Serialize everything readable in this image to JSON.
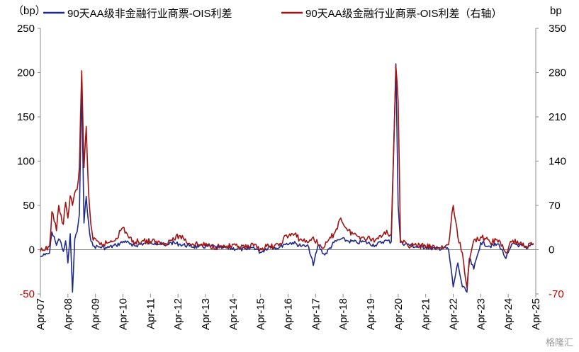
{
  "chart_data": {
    "type": "line",
    "left_unit": "（bp）",
    "right_unit": "bp",
    "y_left": {
      "min": -50,
      "max": 250,
      "ticks": [
        -50,
        0,
        50,
        100,
        150,
        200,
        250
      ]
    },
    "y_right": {
      "min": -70,
      "max": 350,
      "ticks": [
        -70,
        0,
        70,
        140,
        210,
        280,
        350
      ]
    },
    "x_ticks": [
      "Apr-07",
      "Apr-08",
      "Apr-09",
      "Apr-10",
      "Apr-11",
      "Apr-12",
      "Apr-13",
      "Apr-14",
      "Apr-15",
      "Apr-16",
      "Apr-17",
      "Apr-18",
      "Apr-19",
      "Apr-20",
      "Apr-21",
      "Apr-22",
      "Apr-23",
      "Apr-24",
      "Apr-25"
    ],
    "legend_position": "top",
    "grid": false,
    "series": [
      {
        "name": "90天AA级非金融行业商票-OIS利差",
        "axis": "left",
        "color": "#1f2a8a",
        "points": [
          [
            "2007-04",
            -8
          ],
          [
            "2007-06",
            -6
          ],
          [
            "2007-08",
            -4
          ],
          [
            "2007-09",
            20
          ],
          [
            "2007-10",
            15
          ],
          [
            "2007-11",
            5
          ],
          [
            "2007-12",
            12
          ],
          [
            "2008-01",
            8
          ],
          [
            "2008-02",
            -2
          ],
          [
            "2008-03",
            10
          ],
          [
            "2008-04",
            -15
          ],
          [
            "2008-05",
            18
          ],
          [
            "2008-06",
            -48
          ],
          [
            "2008-07",
            12
          ],
          [
            "2008-08",
            20
          ],
          [
            "2008-09",
            40
          ],
          [
            "2008-10",
            185
          ],
          [
            "2008-11",
            30
          ],
          [
            "2008-12",
            60
          ],
          [
            "2009-01",
            30
          ],
          [
            "2009-02",
            10
          ],
          [
            "2009-03",
            4
          ],
          [
            "2009-06",
            3
          ],
          [
            "2009-09",
            2
          ],
          [
            "2010-01",
            5
          ],
          [
            "2010-05",
            10
          ],
          [
            "2010-08",
            4
          ],
          [
            "2011-01",
            7
          ],
          [
            "2011-06",
            8
          ],
          [
            "2011-10",
            5
          ],
          [
            "2012-01",
            8
          ],
          [
            "2012-05",
            6
          ],
          [
            "2012-09",
            4
          ],
          [
            "2013-01",
            3
          ],
          [
            "2013-06",
            4
          ],
          [
            "2013-10",
            2
          ],
          [
            "2014-01",
            2
          ],
          [
            "2014-06",
            1
          ],
          [
            "2014-10",
            0
          ],
          [
            "2015-01",
            3
          ],
          [
            "2015-04",
            -3
          ],
          [
            "2015-08",
            4
          ],
          [
            "2015-12",
            2
          ],
          [
            "2016-02",
            6
          ],
          [
            "2016-06",
            8
          ],
          [
            "2016-10",
            4
          ],
          [
            "2017-01",
            3
          ],
          [
            "2017-03",
            -18
          ],
          [
            "2017-05",
            5
          ],
          [
            "2017-08",
            -6
          ],
          [
            "2017-12",
            8
          ],
          [
            "2018-03",
            12
          ],
          [
            "2018-06",
            10
          ],
          [
            "2018-10",
            8
          ],
          [
            "2019-01",
            9
          ],
          [
            "2019-06",
            5
          ],
          [
            "2019-10",
            10
          ],
          [
            "2020-01",
            9
          ],
          [
            "2020-03",
            210
          ],
          [
            "2020-04",
            50
          ],
          [
            "2020-05",
            8
          ],
          [
            "2020-08",
            6
          ],
          [
            "2020-12",
            3
          ],
          [
            "2021-04",
            3
          ],
          [
            "2021-08",
            1
          ],
          [
            "2021-12",
            2
          ],
          [
            "2022-02",
            0
          ],
          [
            "2022-04",
            -42
          ],
          [
            "2022-06",
            -15
          ],
          [
            "2022-08",
            -42
          ],
          [
            "2022-10",
            -48
          ],
          [
            "2022-11",
            -10
          ],
          [
            "2023-01",
            -22
          ],
          [
            "2023-04",
            8
          ],
          [
            "2023-08",
            4
          ],
          [
            "2023-12",
            6
          ],
          [
            "2024-03",
            -10
          ],
          [
            "2024-06",
            7
          ],
          [
            "2024-09",
            5
          ],
          [
            "2024-12",
            1
          ],
          [
            "2025-03",
            6
          ]
        ]
      },
      {
        "name": "90天AA级金融行业商票-OIS利差（右轴）",
        "axis": "right",
        "color": "#a01414",
        "points": [
          [
            "2007-04",
            -3
          ],
          [
            "2007-06",
            -1
          ],
          [
            "2007-08",
            5
          ],
          [
            "2007-09",
            60
          ],
          [
            "2007-10",
            45
          ],
          [
            "2007-11",
            30
          ],
          [
            "2007-12",
            70
          ],
          [
            "2008-01",
            55
          ],
          [
            "2008-02",
            40
          ],
          [
            "2008-03",
            75
          ],
          [
            "2008-04",
            50
          ],
          [
            "2008-05",
            85
          ],
          [
            "2008-06",
            70
          ],
          [
            "2008-07",
            90
          ],
          [
            "2008-08",
            95
          ],
          [
            "2008-09",
            130
          ],
          [
            "2008-10",
            283
          ],
          [
            "2008-11",
            130
          ],
          [
            "2008-12",
            195
          ],
          [
            "2009-01",
            90
          ],
          [
            "2009-02",
            40
          ],
          [
            "2009-03",
            15
          ],
          [
            "2009-06",
            8
          ],
          [
            "2009-09",
            10
          ],
          [
            "2010-01",
            18
          ],
          [
            "2010-04",
            35
          ],
          [
            "2010-08",
            12
          ],
          [
            "2011-01",
            14
          ],
          [
            "2011-06",
            12
          ],
          [
            "2011-10",
            10
          ],
          [
            "2012-01",
            15
          ],
          [
            "2012-05",
            22
          ],
          [
            "2012-09",
            10
          ],
          [
            "2013-01",
            8
          ],
          [
            "2013-06",
            6
          ],
          [
            "2013-10",
            5
          ],
          [
            "2014-01",
            5
          ],
          [
            "2014-06",
            4
          ],
          [
            "2014-10",
            3
          ],
          [
            "2015-01",
            6
          ],
          [
            "2015-04",
            2
          ],
          [
            "2015-08",
            5
          ],
          [
            "2015-12",
            6
          ],
          [
            "2016-02",
            18
          ],
          [
            "2016-06",
            25
          ],
          [
            "2016-10",
            15
          ],
          [
            "2017-01",
            12
          ],
          [
            "2017-03",
            20
          ],
          [
            "2017-05",
            8
          ],
          [
            "2017-08",
            5
          ],
          [
            "2017-12",
            25
          ],
          [
            "2018-03",
            50
          ],
          [
            "2018-06",
            30
          ],
          [
            "2018-10",
            22
          ],
          [
            "2019-01",
            20
          ],
          [
            "2019-06",
            15
          ],
          [
            "2019-10",
            28
          ],
          [
            "2020-01",
            24
          ],
          [
            "2020-03",
            290
          ],
          [
            "2020-04",
            235
          ],
          [
            "2020-05",
            12
          ],
          [
            "2020-08",
            8
          ],
          [
            "2020-12",
            6
          ],
          [
            "2021-04",
            5
          ],
          [
            "2021-08",
            3
          ],
          [
            "2021-12",
            4
          ],
          [
            "2022-02",
            8
          ],
          [
            "2022-04",
            70
          ],
          [
            "2022-06",
            20
          ],
          [
            "2022-08",
            -5
          ],
          [
            "2022-10",
            -60
          ],
          [
            "2022-11",
            -20
          ],
          [
            "2023-01",
            15
          ],
          [
            "2023-04",
            20
          ],
          [
            "2023-08",
            12
          ],
          [
            "2023-12",
            15
          ],
          [
            "2024-03",
            -5
          ],
          [
            "2024-06",
            15
          ],
          [
            "2024-09",
            10
          ],
          [
            "2024-12",
            5
          ],
          [
            "2025-03",
            10
          ]
        ]
      }
    ]
  },
  "watermark": "格隆汇"
}
